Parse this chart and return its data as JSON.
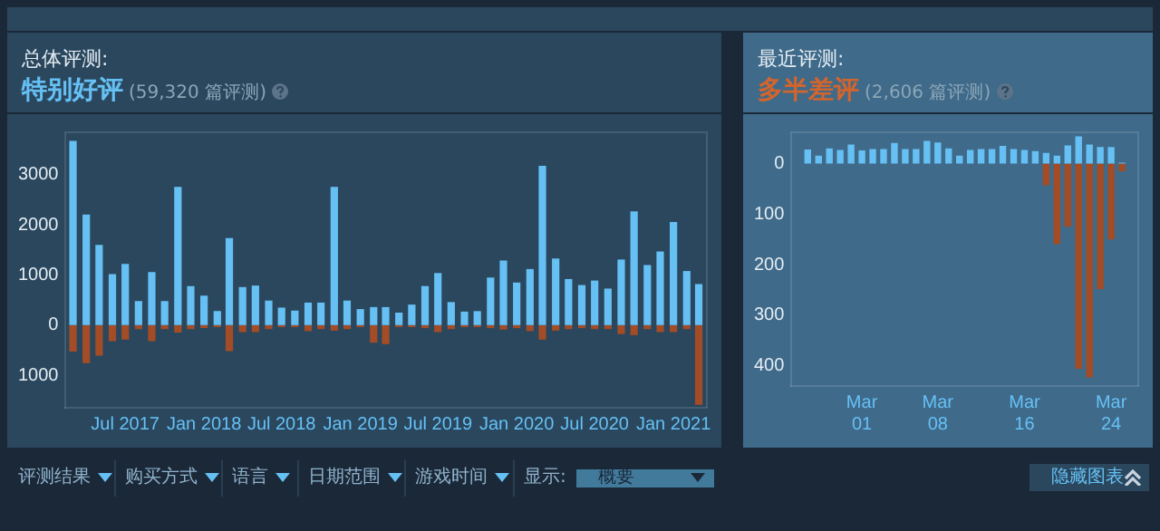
{
  "chart_data": [
    {
      "type": "bar",
      "title": "总体评测:",
      "subtitle": "特别好评",
      "annotations": [
        "(59,320 篇评测)"
      ],
      "stacked": true,
      "grid": false,
      "legend": false,
      "x": [
        "2017-03",
        "2017-04",
        "2017-05",
        "2017-06",
        "2017-07",
        "2017-08",
        "2017-09",
        "2017-10",
        "2017-11",
        "2017-12",
        "2018-01",
        "2018-02",
        "2018-03",
        "2018-04",
        "2018-05",
        "2018-06",
        "2018-07",
        "2018-08",
        "2018-09",
        "2018-10",
        "2018-11",
        "2018-12",
        "2019-01",
        "2019-02",
        "2019-03",
        "2019-04",
        "2019-05",
        "2019-06",
        "2019-07",
        "2019-08",
        "2019-09",
        "2019-10",
        "2019-11",
        "2019-12",
        "2020-01",
        "2020-02",
        "2020-03",
        "2020-04",
        "2020-05",
        "2020-06",
        "2020-07",
        "2020-08",
        "2020-09",
        "2020-10",
        "2020-11",
        "2020-12",
        "2021-01",
        "2021-02",
        "2021-03"
      ],
      "series": [
        {
          "color": "#66c0f4",
          "values": [
            3680,
            2210,
            1600,
            1020,
            1220,
            480,
            1060,
            480,
            2760,
            780,
            590,
            280,
            1740,
            760,
            790,
            490,
            350,
            290,
            450,
            450,
            2760,
            490,
            320,
            360,
            360,
            250,
            410,
            780,
            1040,
            460,
            270,
            280,
            950,
            1290,
            850,
            1120,
            3180,
            1330,
            920,
            800,
            890,
            730,
            1310,
            2270,
            1200,
            1470,
            2060,
            1080,
            820
          ]
        },
        {
          "color": "#a34c25",
          "values": [
            -530,
            -760,
            -610,
            -320,
            -290,
            -80,
            -320,
            -80,
            -150,
            -80,
            -60,
            -40,
            -520,
            -140,
            -140,
            -80,
            -40,
            -40,
            -120,
            -80,
            -110,
            -80,
            -40,
            -350,
            -380,
            -40,
            -40,
            -60,
            -140,
            -80,
            -40,
            -40,
            -60,
            -90,
            -60,
            -120,
            -290,
            -110,
            -80,
            -60,
            -80,
            -80,
            -180,
            -200,
            -80,
            -140,
            -140,
            -80,
            -1590
          ]
        }
      ],
      "xlim": [
        "2017-02-12",
        "2021-03-20"
      ],
      "xticks": [
        {
          "value": "2017-07",
          "label": "Jul 2017"
        },
        {
          "value": "2018-01",
          "label": "Jan 2018"
        },
        {
          "value": "2018-07",
          "label": "Jul 2018"
        },
        {
          "value": "2019-01",
          "label": "Jan 2019"
        },
        {
          "value": "2019-07",
          "label": "Jul 2019"
        },
        {
          "value": "2020-01",
          "label": "Jan 2020"
        },
        {
          "value": "2020-07",
          "label": "Jul 2020"
        },
        {
          "value": "2021-01",
          "label": "Jan 2021"
        }
      ],
      "ylim": [
        -1650,
        3850
      ],
      "yticks": [
        {
          "value": -1000,
          "label": "1000"
        },
        0,
        1000,
        2000,
        3000
      ]
    },
    {
      "type": "bar",
      "title": "最近评测:",
      "subtitle": "多半差评",
      "annotations": [
        "(2,606 篇评测)"
      ],
      "stacked": true,
      "grid": false,
      "legend": false,
      "x": [
        "2021-02-24",
        "2021-02-25",
        "2021-02-26",
        "2021-02-27",
        "2021-02-28",
        "2021-03-01",
        "2021-03-02",
        "2021-03-03",
        "2021-03-04",
        "2021-03-05",
        "2021-03-06",
        "2021-03-07",
        "2021-03-08",
        "2021-03-09",
        "2021-03-10",
        "2021-03-11",
        "2021-03-12",
        "2021-03-13",
        "2021-03-14",
        "2021-03-15",
        "2021-03-16",
        "2021-03-17",
        "2021-03-18",
        "2021-03-19",
        "2021-03-20",
        "2021-03-21",
        "2021-03-22",
        "2021-03-23",
        "2021-03-24",
        "2021-03-25"
      ],
      "series": [
        {
          "color": "#66c0f4",
          "values": [
            28,
            16,
            30,
            27,
            38,
            26,
            29,
            29,
            41,
            29,
            29,
            45,
            42,
            30,
            16,
            27,
            29,
            29,
            35,
            29,
            27,
            25,
            21,
            16,
            36,
            54,
            38,
            33,
            33,
            2
          ]
        },
        {
          "color": "#a34c25",
          "values": [
            0,
            0,
            0,
            0,
            0,
            0,
            0,
            0,
            0,
            0,
            0,
            0,
            0,
            0,
            0,
            0,
            0,
            0,
            0,
            0,
            0,
            0,
            -43,
            -159,
            -125,
            -406,
            -423,
            -248,
            -150,
            -15
          ]
        }
      ],
      "xlim": [
        "2021-02-22T12:00",
        "2021-03-26T12:00"
      ],
      "xticks": [
        {
          "value": "2021-03-01",
          "label": "Mar\n01"
        },
        {
          "value": "2021-03-08",
          "label": "Mar\n08"
        },
        {
          "value": "2021-03-16",
          "label": "Mar\n16"
        },
        {
          "value": "2021-03-24",
          "label": "Mar\n24"
        }
      ],
      "ylim": [
        -440,
        62
      ],
      "yticks": [
        {
          "value": -400,
          "label": "400"
        },
        {
          "value": -300,
          "label": "300"
        },
        {
          "value": -200,
          "label": "200"
        },
        {
          "value": -100,
          "label": "100"
        },
        0
      ]
    },
    {
      "type": "other",
      "annotations": [
        "评测结果",
        "购买方式",
        "语言",
        "日期范围",
        "游戏时间",
        "显示:",
        "概要",
        "隐藏图表"
      ]
    }
  ]
}
